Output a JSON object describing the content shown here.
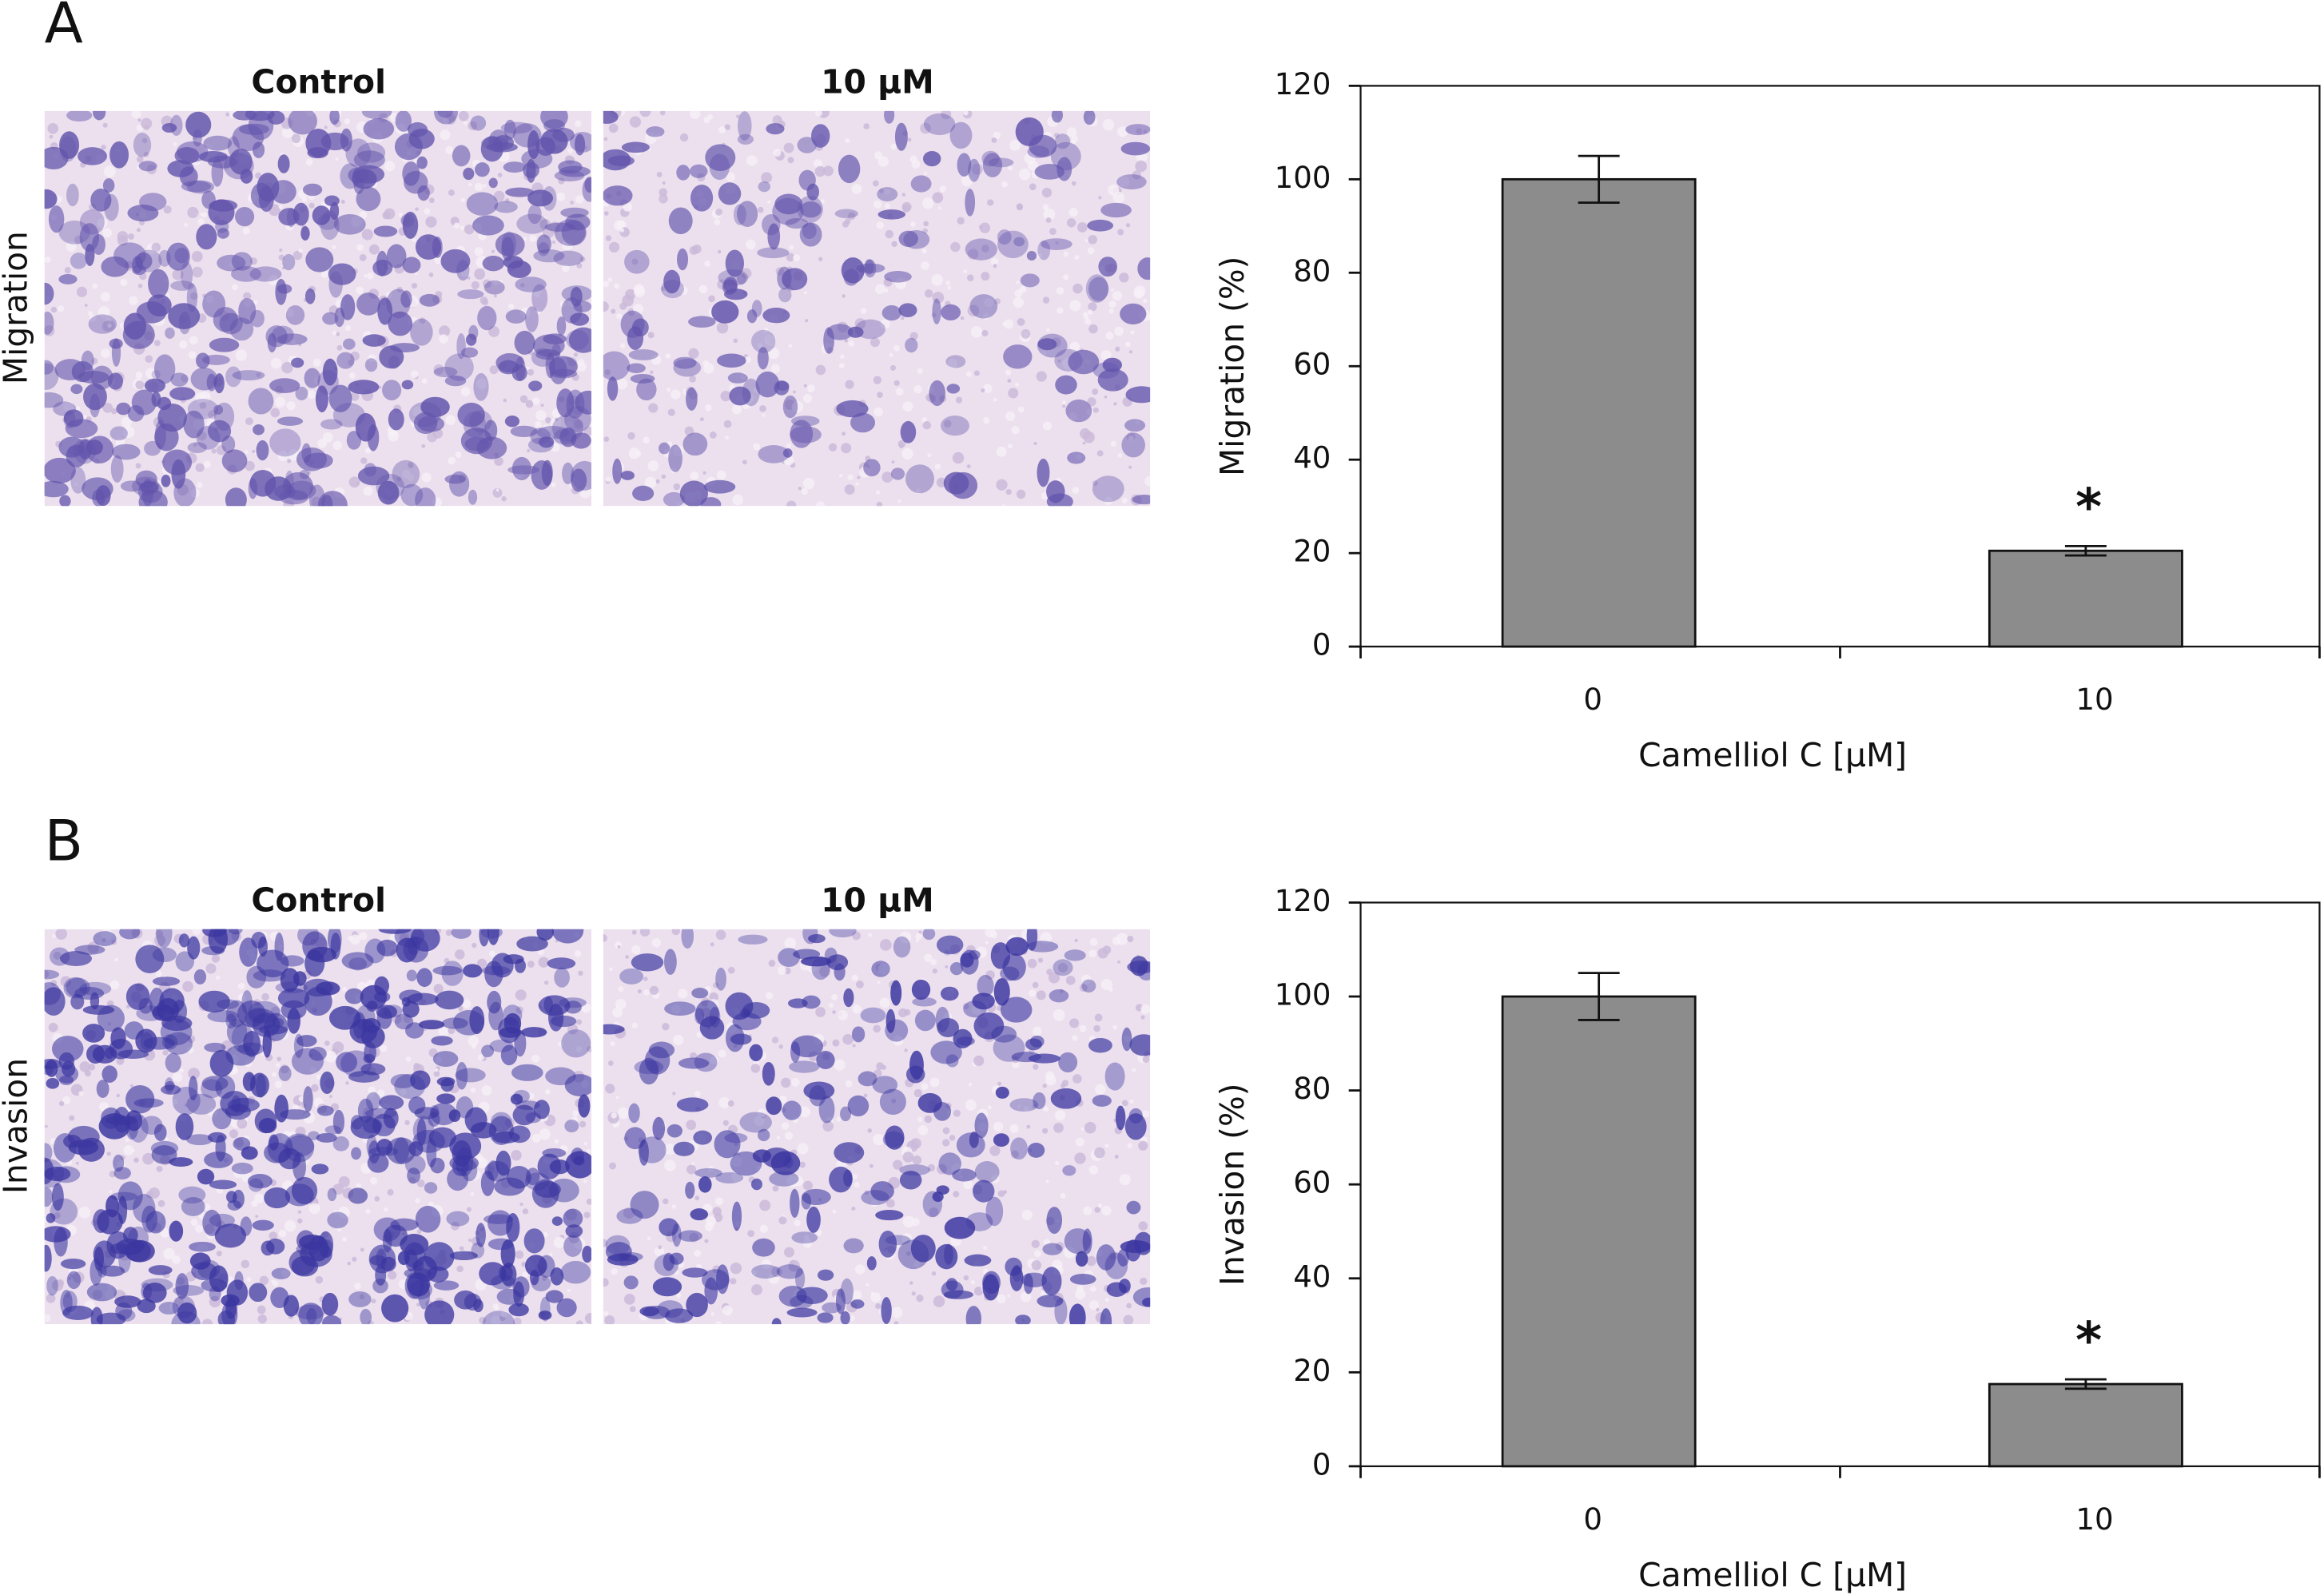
{
  "panels": [
    {
      "label": "A",
      "row_label": "Migration",
      "image_labels": [
        "Control",
        "10 μM"
      ]
    },
    {
      "label": "B",
      "row_label": "Invasion",
      "image_labels": [
        "Control",
        "10 μM"
      ]
    }
  ],
  "chart_data": [
    {
      "type": "bar",
      "y_label": "Migration (%)",
      "x_label": "Camelliol C [μM]",
      "categories": [
        "0",
        "10"
      ],
      "values": [
        100,
        20.5
      ],
      "errors": [
        5,
        1
      ],
      "annotations": [
        null,
        "*"
      ],
      "color": "#8c8c8c",
      "ylim": [
        0,
        120
      ],
      "yticks": [
        0,
        20,
        40,
        60,
        80,
        100,
        120
      ]
    },
    {
      "type": "bar",
      "y_label": "Invasion (%)",
      "x_label": "Camelliol C [μM]",
      "categories": [
        "0",
        "10"
      ],
      "values": [
        100,
        17.5
      ],
      "errors": [
        5,
        1
      ],
      "annotations": [
        null,
        "*"
      ],
      "color": "#8c8c8c",
      "ylim": [
        0,
        120
      ],
      "yticks": [
        0,
        20,
        40,
        60,
        80,
        100,
        120
      ]
    }
  ]
}
